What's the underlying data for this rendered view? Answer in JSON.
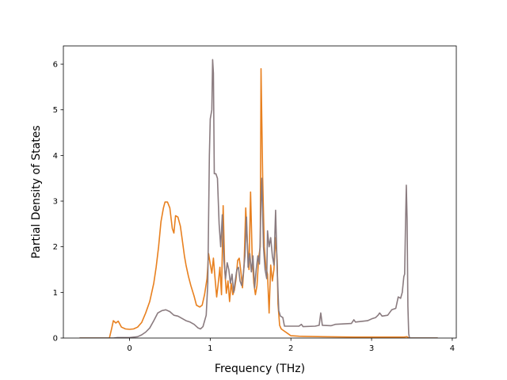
{
  "chart_data": {
    "type": "line",
    "title": "",
    "xlabel": "Frequency (THz)",
    "ylabel": "Partial Density of States",
    "xlim": [
      -0.82,
      4.05
    ],
    "ylim": [
      0,
      6.4
    ],
    "xticks": [
      0,
      1,
      2,
      3,
      4
    ],
    "yticks": [
      0,
      1,
      2,
      3,
      4,
      5,
      6
    ],
    "grid": false,
    "series": [
      {
        "color": "#e8801f",
        "points": [
          [
            -0.62,
            0.0
          ],
          [
            -0.25,
            0.0
          ],
          [
            -0.22,
            0.22
          ],
          [
            -0.2,
            0.38
          ],
          [
            -0.17,
            0.33
          ],
          [
            -0.14,
            0.37
          ],
          [
            -0.1,
            0.24
          ],
          [
            -0.05,
            0.2
          ],
          [
            0.0,
            0.19
          ],
          [
            0.05,
            0.2
          ],
          [
            0.1,
            0.24
          ],
          [
            0.15,
            0.34
          ],
          [
            0.2,
            0.55
          ],
          [
            0.25,
            0.8
          ],
          [
            0.3,
            1.2
          ],
          [
            0.33,
            1.55
          ],
          [
            0.36,
            2.0
          ],
          [
            0.39,
            2.55
          ],
          [
            0.42,
            2.85
          ],
          [
            0.44,
            2.98
          ],
          [
            0.47,
            2.98
          ],
          [
            0.5,
            2.85
          ],
          [
            0.53,
            2.4
          ],
          [
            0.55,
            2.3
          ],
          [
            0.57,
            2.68
          ],
          [
            0.6,
            2.65
          ],
          [
            0.63,
            2.45
          ],
          [
            0.65,
            2.2
          ],
          [
            0.68,
            1.8
          ],
          [
            0.7,
            1.6
          ],
          [
            0.73,
            1.35
          ],
          [
            0.76,
            1.15
          ],
          [
            0.8,
            0.92
          ],
          [
            0.83,
            0.72
          ],
          [
            0.87,
            0.68
          ],
          [
            0.9,
            0.72
          ],
          [
            0.93,
            0.95
          ],
          [
            0.96,
            1.3
          ],
          [
            0.98,
            1.85
          ],
          [
            1.0,
            1.62
          ],
          [
            1.02,
            1.42
          ],
          [
            1.04,
            1.75
          ],
          [
            1.06,
            1.3
          ],
          [
            1.08,
            0.9
          ],
          [
            1.1,
            1.2
          ],
          [
            1.12,
            1.55
          ],
          [
            1.14,
            0.95
          ],
          [
            1.16,
            2.9
          ],
          [
            1.18,
            1.5
          ],
          [
            1.2,
            0.98
          ],
          [
            1.22,
            1.25
          ],
          [
            1.24,
            0.8
          ],
          [
            1.26,
            1.2
          ],
          [
            1.28,
            0.95
          ],
          [
            1.3,
            1.05
          ],
          [
            1.32,
            1.3
          ],
          [
            1.34,
            1.7
          ],
          [
            1.36,
            1.75
          ],
          [
            1.38,
            1.45
          ],
          [
            1.4,
            1.1
          ],
          [
            1.42,
            1.6
          ],
          [
            1.44,
            2.85
          ],
          [
            1.46,
            2.1
          ],
          [
            1.48,
            1.5
          ],
          [
            1.5,
            3.2
          ],
          [
            1.52,
            1.8
          ],
          [
            1.54,
            1.2
          ],
          [
            1.56,
            0.95
          ],
          [
            1.58,
            1.15
          ],
          [
            1.6,
            1.75
          ],
          [
            1.62,
            2.0
          ],
          [
            1.63,
            5.9
          ],
          [
            1.65,
            3.5
          ],
          [
            1.67,
            2.0
          ],
          [
            1.69,
            1.55
          ],
          [
            1.71,
            1.4
          ],
          [
            1.73,
            0.55
          ],
          [
            1.75,
            1.6
          ],
          [
            1.77,
            1.25
          ],
          [
            1.79,
            1.5
          ],
          [
            1.81,
            2.2
          ],
          [
            1.83,
            1.7
          ],
          [
            1.84,
            0.75
          ],
          [
            1.86,
            0.28
          ],
          [
            1.88,
            0.2
          ],
          [
            1.92,
            0.15
          ],
          [
            1.96,
            0.1
          ],
          [
            2.0,
            0.05
          ],
          [
            2.1,
            0.04
          ],
          [
            2.4,
            0.03
          ],
          [
            2.8,
            0.02
          ],
          [
            3.2,
            0.02
          ],
          [
            3.4,
            0.02
          ],
          [
            3.44,
            0.03
          ],
          [
            3.46,
            0.0
          ],
          [
            3.82,
            0.0
          ]
        ]
      },
      {
        "color": "#8a7b7f",
        "points": [
          [
            -0.62,
            0.0
          ],
          [
            -0.2,
            0.0
          ],
          [
            -0.15,
            0.01
          ],
          [
            0.0,
            0.01
          ],
          [
            0.1,
            0.03
          ],
          [
            0.15,
            0.07
          ],
          [
            0.2,
            0.13
          ],
          [
            0.25,
            0.22
          ],
          [
            0.3,
            0.38
          ],
          [
            0.35,
            0.55
          ],
          [
            0.4,
            0.6
          ],
          [
            0.45,
            0.62
          ],
          [
            0.5,
            0.58
          ],
          [
            0.55,
            0.5
          ],
          [
            0.6,
            0.48
          ],
          [
            0.65,
            0.43
          ],
          [
            0.7,
            0.38
          ],
          [
            0.75,
            0.35
          ],
          [
            0.8,
            0.3
          ],
          [
            0.85,
            0.22
          ],
          [
            0.88,
            0.2
          ],
          [
            0.91,
            0.25
          ],
          [
            0.95,
            0.5
          ],
          [
            0.97,
            1.2
          ],
          [
            0.99,
            4.0
          ],
          [
            1.0,
            4.8
          ],
          [
            1.02,
            5.0
          ],
          [
            1.03,
            6.1
          ],
          [
            1.04,
            5.8
          ],
          [
            1.05,
            3.6
          ],
          [
            1.07,
            3.6
          ],
          [
            1.09,
            3.5
          ],
          [
            1.11,
            2.5
          ],
          [
            1.13,
            2.0
          ],
          [
            1.15,
            2.7
          ],
          [
            1.17,
            1.7
          ],
          [
            1.19,
            1.3
          ],
          [
            1.21,
            1.65
          ],
          [
            1.23,
            1.5
          ],
          [
            1.25,
            1.2
          ],
          [
            1.27,
            1.4
          ],
          [
            1.29,
            1.0
          ],
          [
            1.31,
            1.25
          ],
          [
            1.33,
            1.5
          ],
          [
            1.35,
            1.55
          ],
          [
            1.37,
            1.25
          ],
          [
            1.39,
            1.15
          ],
          [
            1.41,
            1.4
          ],
          [
            1.43,
            1.8
          ],
          [
            1.45,
            2.65
          ],
          [
            1.47,
            1.55
          ],
          [
            1.49,
            1.85
          ],
          [
            1.51,
            1.45
          ],
          [
            1.53,
            1.8
          ],
          [
            1.55,
            1.1
          ],
          [
            1.57,
            1.5
          ],
          [
            1.59,
            1.8
          ],
          [
            1.61,
            1.62
          ],
          [
            1.62,
            2.2
          ],
          [
            1.63,
            3.0
          ],
          [
            1.64,
            3.5
          ],
          [
            1.66,
            2.0
          ],
          [
            1.68,
            1.5
          ],
          [
            1.7,
            1.3
          ],
          [
            1.71,
            2.35
          ],
          [
            1.73,
            2.0
          ],
          [
            1.75,
            2.2
          ],
          [
            1.77,
            1.8
          ],
          [
            1.79,
            1.6
          ],
          [
            1.81,
            2.8
          ],
          [
            1.83,
            1.5
          ],
          [
            1.85,
            0.6
          ],
          [
            1.87,
            0.48
          ],
          [
            1.9,
            0.45
          ],
          [
            1.92,
            0.26
          ],
          [
            2.0,
            0.26
          ],
          [
            2.1,
            0.26
          ],
          [
            2.13,
            0.3
          ],
          [
            2.15,
            0.25
          ],
          [
            2.3,
            0.26
          ],
          [
            2.35,
            0.28
          ],
          [
            2.37,
            0.55
          ],
          [
            2.39,
            0.28
          ],
          [
            2.5,
            0.27
          ],
          [
            2.55,
            0.3
          ],
          [
            2.75,
            0.32
          ],
          [
            2.78,
            0.4
          ],
          [
            2.8,
            0.35
          ],
          [
            2.95,
            0.38
          ],
          [
            3.0,
            0.42
          ],
          [
            3.05,
            0.45
          ],
          [
            3.08,
            0.5
          ],
          [
            3.1,
            0.55
          ],
          [
            3.13,
            0.48
          ],
          [
            3.2,
            0.5
          ],
          [
            3.25,
            0.62
          ],
          [
            3.3,
            0.65
          ],
          [
            3.33,
            0.9
          ],
          [
            3.36,
            0.87
          ],
          [
            3.38,
            1.0
          ],
          [
            3.4,
            1.35
          ],
          [
            3.41,
            1.4
          ],
          [
            3.42,
            2.4
          ],
          [
            3.43,
            3.35
          ],
          [
            3.44,
            2.6
          ],
          [
            3.45,
            0.7
          ],
          [
            3.46,
            0.1
          ],
          [
            3.47,
            0.0
          ],
          [
            3.82,
            0.0
          ]
        ]
      }
    ]
  }
}
